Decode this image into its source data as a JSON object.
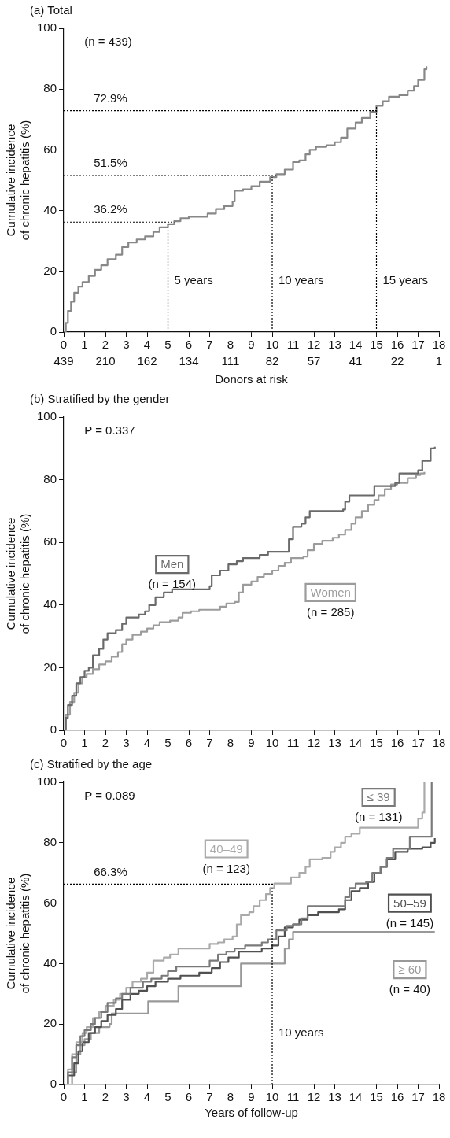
{
  "chart_data": [
    {
      "type": "step",
      "title": "(a) Total",
      "ylabel": "Cumulative incidence of chronic hepatitis (%)",
      "xlabel": "Donors at risk",
      "xlim": [
        0,
        18
      ],
      "xticks": [
        0,
        1,
        2,
        3,
        4,
        5,
        6,
        7,
        8,
        9,
        10,
        11,
        12,
        13,
        14,
        15,
        16,
        17,
        18
      ],
      "ylim": [
        0,
        100
      ],
      "yticks": [
        0,
        20,
        40,
        60,
        80,
        100
      ],
      "grid": false,
      "legend": false,
      "marker": "none",
      "line_style": "solid",
      "annotations": [
        "(n = 439)",
        "439",
        "210",
        "162",
        "134",
        "111",
        "82",
        "57",
        "41",
        "22",
        "1"
      ],
      "ref_lines": [
        {
          "axis": "y",
          "value": 36.2,
          "label": "36.2%",
          "line_style": "dotted",
          "color": "#000000"
        },
        {
          "axis": "y",
          "value": 51.5,
          "label": "51.5%",
          "line_style": "dotted",
          "color": "#000000"
        },
        {
          "axis": "y",
          "value": 72.9,
          "label": "72.9%",
          "line_style": "dotted",
          "color": "#000000"
        },
        {
          "axis": "x",
          "value": 5,
          "label": "5 years",
          "line_style": "dotted",
          "color": "#000000"
        },
        {
          "axis": "x",
          "value": 10,
          "label": "10 years",
          "line_style": "dotted",
          "color": "#000000"
        },
        {
          "axis": "x",
          "value": 15,
          "label": "15 years",
          "line_style": "dotted",
          "color": "#000000"
        }
      ],
      "series": [
        {
          "color": "#888888",
          "x": [
            0,
            0.1,
            0.2,
            0.35,
            0.5,
            0.7,
            0.9,
            1.2,
            1.5,
            1.8,
            2.1,
            2.5,
            2.8,
            3.1,
            3.5,
            3.9,
            4.3,
            4.6,
            5,
            5.3,
            5.6,
            6,
            6.5,
            6.9,
            7.3,
            7.7,
            8.1,
            8.2,
            8.6,
            9,
            9.4,
            9.9,
            10.2,
            10.6,
            11,
            11.3,
            11.6,
            11.8,
            12.1,
            12.6,
            13,
            13.3,
            13.6,
            14,
            14.3,
            14.7,
            15,
            15.3,
            15.6,
            16.1,
            16.5,
            16.8,
            17,
            17.3,
            17.4
          ],
          "values": [
            0,
            3,
            7,
            10,
            13,
            15,
            16.5,
            18.5,
            20.5,
            22,
            24,
            25.5,
            28,
            29.5,
            30.5,
            31.5,
            33,
            34.5,
            35.5,
            36.5,
            37.5,
            38,
            38,
            39,
            40.5,
            41.5,
            43,
            46.5,
            47,
            48,
            49.5,
            51,
            52,
            53.5,
            56,
            56.5,
            58.5,
            60,
            61,
            61.5,
            62.5,
            64,
            67,
            69,
            70.5,
            72.5,
            74.5,
            76,
            77.5,
            78,
            79.5,
            81,
            83,
            86.5,
            87.5
          ]
        }
      ]
    },
    {
      "type": "step",
      "title": "(b) Stratified by the gender",
      "ylabel": "Cumulative incidence of chronic hepatitis (%)",
      "xlim": [
        0,
        18
      ],
      "xticks": [
        0,
        1,
        2,
        3,
        4,
        5,
        6,
        7,
        8,
        9,
        10,
        11,
        12,
        13,
        14,
        15,
        16,
        17,
        18
      ],
      "ylim": [
        0,
        100
      ],
      "yticks": [
        0,
        20,
        40,
        60,
        80,
        100
      ],
      "grid": false,
      "legend": false,
      "marker": "none",
      "line_style": "solid",
      "annotations": [
        "P = 0.337",
        "(n = 154)",
        "(n = 285)"
      ],
      "series": [
        {
          "name": "Men",
          "color": "#6a6a6a",
          "x": [
            0,
            0.1,
            0.2,
            0.4,
            0.6,
            0.8,
            1,
            1.2,
            1.4,
            1.7,
            1.9,
            2.1,
            2.5,
            2.8,
            3,
            3.6,
            3.9,
            4.1,
            4.4,
            4.8,
            5.2,
            6,
            7,
            7.1,
            7.5,
            7.9,
            8.3,
            8.6,
            9.4,
            9.8,
            10.6,
            10.8,
            11,
            11.4,
            11.6,
            11.8,
            12.5,
            13.4,
            13.5,
            13.7,
            14.5,
            14.9,
            15.5,
            15.9,
            16.1,
            16.6,
            17,
            17.2,
            17.6,
            17.8
          ],
          "values": [
            0,
            4,
            8,
            11,
            15,
            17,
            19,
            20,
            24,
            26,
            29,
            31,
            32,
            34,
            36,
            37,
            38,
            40,
            42.5,
            44,
            45,
            45,
            46,
            49.5,
            51,
            53,
            54,
            55,
            56,
            57,
            57,
            61,
            65,
            66,
            68,
            70,
            70,
            70.5,
            73,
            75,
            75,
            78,
            78,
            79,
            82,
            82,
            83,
            86,
            90,
            90.5
          ]
        },
        {
          "name": "Women",
          "color": "#9c9c9c",
          "x": [
            0,
            0.1,
            0.3,
            0.5,
            0.7,
            0.9,
            1.1,
            1.4,
            1.7,
            2,
            2.3,
            2.6,
            2.8,
            3,
            3.3,
            3.7,
            4,
            4.3,
            4.6,
            5.1,
            5.5,
            5.7,
            6.1,
            6.5,
            7.2,
            7.5,
            7.8,
            8.2,
            8.4,
            8.6,
            9,
            9.3,
            9.6,
            10,
            10.3,
            10.6,
            10.9,
            11.5,
            11.7,
            12,
            12.4,
            12.9,
            13.2,
            13.5,
            13.8,
            14,
            14.3,
            14.6,
            14.9,
            15.1,
            15.4,
            15.7,
            16,
            16.5,
            16.9,
            17.1,
            17.3
          ],
          "values": [
            0,
            5,
            9,
            12,
            15,
            17,
            18,
            19.5,
            21,
            22,
            23.5,
            25,
            27.5,
            29,
            30.5,
            31.5,
            32.5,
            33.5,
            34.5,
            35,
            36,
            37.5,
            38,
            38.5,
            38.5,
            39.5,
            40.5,
            41,
            44,
            46.5,
            47.5,
            49,
            50,
            51,
            52.5,
            53.5,
            55,
            55.5,
            57.5,
            59.5,
            60.5,
            61.5,
            62.5,
            64,
            66,
            68,
            70,
            72,
            73.5,
            75,
            77,
            78.5,
            79,
            80.5,
            81.5,
            82,
            82.5
          ]
        }
      ]
    },
    {
      "type": "step",
      "title": "(c) Stratified by the age",
      "ylabel": "Cumulative incidence of chronic hepatitis (%)",
      "xlabel": "Years of follow-up",
      "xlim": [
        0,
        18
      ],
      "xticks": [
        0,
        1,
        2,
        3,
        4,
        5,
        6,
        7,
        8,
        9,
        10,
        11,
        12,
        13,
        14,
        15,
        16,
        17,
        18
      ],
      "ylim": [
        0,
        100
      ],
      "yticks": [
        0,
        20,
        40,
        60,
        80,
        100
      ],
      "grid": false,
      "legend": false,
      "marker": "none",
      "line_style": "solid",
      "annotations": [
        "P = 0.089",
        "(n = 131)",
        "(n = 123)",
        "(n = 145)",
        "(n = 40)"
      ],
      "ref_lines": [
        {
          "axis": "y",
          "value": 66.3,
          "label": "66.3%",
          "line_style": "dotted",
          "color": "#000000"
        },
        {
          "axis": "x",
          "value": 10,
          "label": "10 years",
          "line_style": "dotted",
          "color": "#000000"
        }
      ],
      "series": [
        {
          "name": "≤ 39",
          "color": "#7a7a7a",
          "x": [
            0,
            0.2,
            0.4,
            0.6,
            0.8,
            1,
            1.3,
            1.5,
            1.8,
            2.1,
            2.5,
            2.8,
            3.2,
            3.8,
            4.2,
            4.7,
            5,
            5.4,
            6.2,
            7,
            7.4,
            7.8,
            8.2,
            8.7,
            9.5,
            9.8,
            10.2,
            10.7,
            11,
            11.4,
            11.7,
            13.2,
            13.5,
            13.7,
            14,
            14.5,
            14.8,
            15.2,
            15.5,
            15.8,
            16.4,
            16.6,
            17.6,
            17.65
          ],
          "values": [
            0,
            4,
            9,
            13,
            16,
            18,
            20,
            22,
            24,
            27,
            28.5,
            30,
            32,
            34,
            35,
            36,
            37.5,
            39,
            39,
            41,
            43,
            44,
            45,
            46,
            47,
            48,
            51,
            52.5,
            53,
            55,
            59,
            59,
            62,
            65,
            66.5,
            67,
            70,
            72,
            75,
            78,
            78,
            82,
            82,
            100
          ]
        },
        {
          "name": "40–49",
          "color": "#aaaaaa",
          "x": [
            0,
            0.2,
            0.4,
            0.6,
            0.9,
            1.1,
            1.4,
            1.7,
            2,
            2.4,
            2.7,
            3,
            3.3,
            3.7,
            4,
            4.3,
            4.8,
            5.1,
            5.5,
            6.4,
            7,
            7.4,
            7.7,
            8.1,
            8.3,
            8.5,
            8.9,
            9.1,
            9.4,
            9.7,
            9.9,
            10.1,
            10.9,
            11.3,
            11.6,
            11.8,
            12.4,
            12.8,
            13,
            13.3,
            13.5,
            13.8,
            14.2,
            16.7,
            17,
            17.2,
            17.3
          ],
          "values": [
            0,
            5,
            10,
            14,
            17,
            19,
            22,
            24,
            26,
            28,
            30,
            32,
            34,
            35,
            37,
            41,
            42,
            43,
            45,
            45,
            46.5,
            47,
            48,
            49,
            53,
            56,
            57,
            59,
            61,
            63,
            65,
            66.5,
            68.5,
            70,
            72,
            74.5,
            75,
            77,
            78.5,
            80,
            82,
            83,
            85,
            85,
            88,
            90,
            100
          ]
        },
        {
          "name": "50–59",
          "color": "#505050",
          "x": [
            0,
            0.2,
            0.5,
            0.7,
            0.9,
            1.2,
            1.5,
            1.8,
            2.1,
            2.5,
            2.8,
            3.2,
            3.6,
            4,
            4.4,
            5,
            5.6,
            6.5,
            7.1,
            7.5,
            7.9,
            8.4,
            9.5,
            10,
            10.3,
            10.6,
            11,
            11.3,
            11.7,
            12.2,
            13.2,
            13.5,
            13.8,
            14.2,
            14.6,
            14.9,
            15.2,
            15.5,
            15.9,
            16.5,
            17.2,
            17.6,
            17.8
          ],
          "values": [
            0,
            3,
            7,
            11,
            14,
            17,
            19,
            21,
            23,
            25,
            28,
            30,
            31,
            32.5,
            34,
            35,
            36,
            37,
            38.5,
            40.5,
            42,
            44,
            45,
            46,
            49,
            52,
            53,
            54.5,
            56,
            57,
            58,
            61,
            64,
            65,
            67,
            70,
            72,
            74.5,
            77,
            78,
            78.5,
            80,
            81.5
          ]
        },
        {
          "name": "≥ 60",
          "color": "#999999",
          "x": [
            0,
            0.4,
            0.6,
            0.8,
            1,
            1.3,
            1.7,
            2.2,
            2.3,
            4,
            4.05,
            5.5,
            8.5,
            10.6,
            10.8,
            11,
            17.8
          ],
          "values": [
            0,
            4,
            10,
            13,
            15,
            17,
            19,
            20,
            23.5,
            23.5,
            27.5,
            32.5,
            40,
            45,
            48,
            50.5,
            50.5
          ]
        }
      ]
    }
  ]
}
